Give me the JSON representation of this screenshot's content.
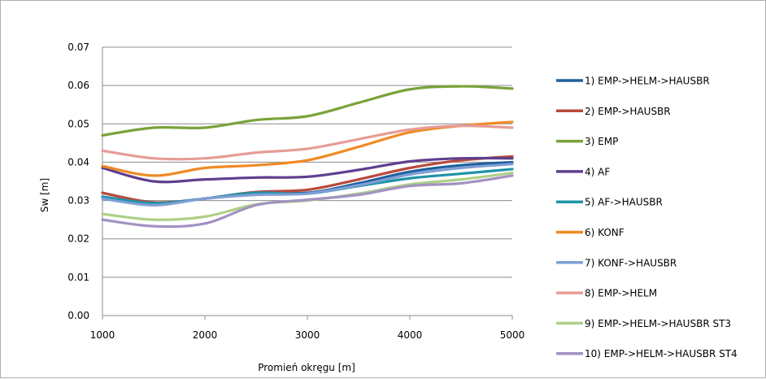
{
  "chart_data": {
    "type": "line",
    "xlabel": "Promień okręgu [m]",
    "ylabel": "Sw [m]",
    "xlim": [
      1000,
      5000
    ],
    "ylim": [
      0,
      0.07
    ],
    "x_ticks": [
      "1000",
      "2000",
      "3000",
      "4000",
      "5000"
    ],
    "y_ticks": [
      "0.00",
      "0.01",
      "0.02",
      "0.03",
      "0.04",
      "0.05",
      "0.06",
      "0.07"
    ],
    "grid": "horizontal",
    "legend_position": "right",
    "x": [
      1000,
      1500,
      2000,
      2500,
      3000,
      3500,
      4000,
      4500,
      5000
    ],
    "series": [
      {
        "name": "1) EMP->HELM->HAUSBR",
        "color": "#1f5f9e",
        "values": [
          0.032,
          0.0295,
          0.0305,
          0.0322,
          0.032,
          0.0345,
          0.0375,
          0.0392,
          0.04
        ]
      },
      {
        "name": "2) EMP->HAUSBR",
        "color": "#b94a3c",
        "values": [
          0.032,
          0.0295,
          0.0305,
          0.0322,
          0.0328,
          0.0355,
          0.0385,
          0.0405,
          0.0415
        ]
      },
      {
        "name": "3) EMP",
        "color": "#7aa23a",
        "values": [
          0.047,
          0.049,
          0.049,
          0.051,
          0.052,
          0.0555,
          0.059,
          0.0598,
          0.0592
        ]
      },
      {
        "name": "4) AF",
        "color": "#5f3f8e",
        "values": [
          0.0385,
          0.035,
          0.0355,
          0.036,
          0.0362,
          0.038,
          0.0402,
          0.041,
          0.041
        ]
      },
      {
        "name": "5) AF->HAUSBR",
        "color": "#1f93a8",
        "values": [
          0.031,
          0.0293,
          0.0305,
          0.032,
          0.0318,
          0.0338,
          0.0358,
          0.037,
          0.0382
        ]
      },
      {
        "name": "6) KONF",
        "color": "#ef8a24",
        "values": [
          0.039,
          0.0365,
          0.0385,
          0.0392,
          0.0405,
          0.044,
          0.0478,
          0.0495,
          0.0505
        ]
      },
      {
        "name": "7) KONF->HAUSBR",
        "color": "#7f9fd4",
        "values": [
          0.0305,
          0.0288,
          0.0305,
          0.0315,
          0.0318,
          0.034,
          0.0368,
          0.0385,
          0.0395
        ]
      },
      {
        "name": "8) EMP->HELM",
        "color": "#e79c96",
        "values": [
          0.043,
          0.041,
          0.041,
          0.0425,
          0.0435,
          0.046,
          0.0485,
          0.0495,
          0.049
        ]
      },
      {
        "name": "9) EMP->HELM->HAUSBR ST3",
        "color": "#aed087",
        "values": [
          0.0265,
          0.025,
          0.0258,
          0.029,
          0.03,
          0.0318,
          0.0342,
          0.0355,
          0.0372
        ]
      },
      {
        "name": "10) EMP->HELM->HAUSBR ST4",
        "color": "#a292c2",
        "values": [
          0.025,
          0.0233,
          0.024,
          0.0288,
          0.0302,
          0.0315,
          0.0338,
          0.0345,
          0.0365
        ]
      }
    ]
  }
}
